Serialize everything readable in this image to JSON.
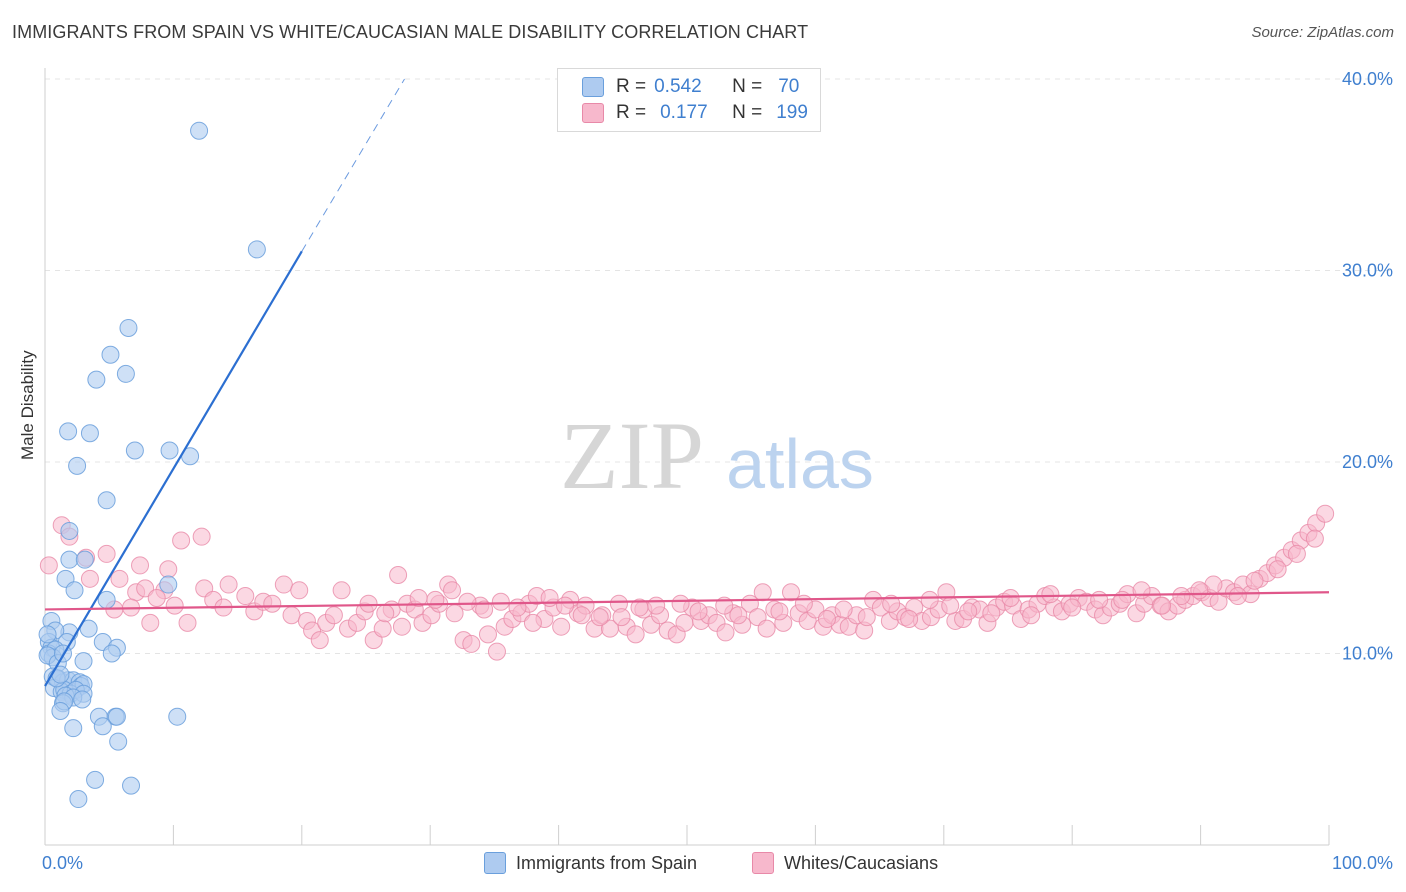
{
  "title": "IMMIGRANTS FROM SPAIN VS WHITE/CAUCASIAN MALE DISABILITY CORRELATION CHART",
  "source": "Source: ZipAtlas.com",
  "watermark": {
    "zip": "ZIP",
    "atlas": "atlas"
  },
  "legend": {
    "rows": [
      {
        "r_label": "R =",
        "r_value": "0.542",
        "n_label": "N =",
        "n_value": "70",
        "color": "#aecbf0"
      },
      {
        "r_label": "R =",
        "r_value": "0.177",
        "n_label": "N =",
        "n_value": "199",
        "color": "#f7b8cc"
      }
    ]
  },
  "bottom_legend": [
    {
      "label": "Immigrants from Spain",
      "color": "#aecbf0"
    },
    {
      "label": "Whites/Caucasians",
      "color": "#f7b8cc"
    }
  ],
  "chart_data": {
    "type": "scatter",
    "ylabel": "Male Disability",
    "xlim": [
      0,
      100
    ],
    "ylim": [
      0,
      42
    ],
    "x_tick_labels": [
      {
        "value": 0,
        "label": "0.0%"
      },
      {
        "value": 100,
        "label": "100.0%"
      }
    ],
    "y_tick_labels": [
      {
        "value": 10,
        "label": "10.0%"
      },
      {
        "value": 20,
        "label": "20.0%"
      },
      {
        "value": 30,
        "label": "30.0%"
      },
      {
        "value": 40,
        "label": "40.0%"
      }
    ],
    "series": [
      {
        "name": "Immigrants from Spain",
        "color": "#aecbf0",
        "stroke": "#6a9fdc",
        "trend": {
          "x0": 0,
          "y0": 8.3,
          "x1": 20,
          "y1": 31.0,
          "dash_to_x": 28,
          "dash_to_y": 40.0,
          "color": "#2c6fd1"
        },
        "points": [
          [
            12.0,
            37.3
          ],
          [
            16.5,
            31.1
          ],
          [
            6.5,
            27.0
          ],
          [
            5.1,
            25.6
          ],
          [
            4.0,
            24.3
          ],
          [
            6.3,
            24.6
          ],
          [
            1.8,
            21.6
          ],
          [
            3.5,
            21.5
          ],
          [
            7.0,
            20.6
          ],
          [
            9.7,
            20.6
          ],
          [
            11.3,
            20.3
          ],
          [
            2.5,
            19.8
          ],
          [
            4.8,
            18.0
          ],
          [
            1.9,
            16.4
          ],
          [
            1.9,
            14.9
          ],
          [
            3.1,
            14.9
          ],
          [
            1.6,
            13.9
          ],
          [
            9.6,
            13.6
          ],
          [
            2.3,
            13.3
          ],
          [
            4.8,
            12.8
          ],
          [
            0.5,
            11.7
          ],
          [
            1.9,
            11.1
          ],
          [
            3.4,
            11.3
          ],
          [
            0.8,
            11.2
          ],
          [
            1.7,
            10.6
          ],
          [
            4.5,
            10.6
          ],
          [
            0.3,
            10.6
          ],
          [
            0.5,
            10.3
          ],
          [
            0.3,
            10.0
          ],
          [
            5.6,
            10.3
          ],
          [
            0.8,
            10.2
          ],
          [
            0.6,
            9.8
          ],
          [
            0.2,
            9.9
          ],
          [
            1.0,
            9.5
          ],
          [
            3.0,
            9.6
          ],
          [
            5.2,
            10.0
          ],
          [
            0.6,
            8.8
          ],
          [
            1.0,
            8.7
          ],
          [
            1.4,
            8.5
          ],
          [
            1.8,
            8.6
          ],
          [
            2.2,
            8.6
          ],
          [
            2.7,
            8.5
          ],
          [
            2.8,
            8.3
          ],
          [
            3.0,
            8.4
          ],
          [
            0.7,
            8.2
          ],
          [
            1.3,
            8.0
          ],
          [
            1.5,
            8.1
          ],
          [
            2.0,
            7.9
          ],
          [
            2.4,
            8.1
          ],
          [
            3.0,
            7.9
          ],
          [
            0.9,
            8.7
          ],
          [
            1.2,
            8.9
          ],
          [
            1.6,
            7.8
          ],
          [
            2.2,
            7.7
          ],
          [
            2.9,
            7.6
          ],
          [
            1.4,
            7.4
          ],
          [
            1.5,
            7.5
          ],
          [
            1.2,
            7.0
          ],
          [
            4.2,
            6.7
          ],
          [
            5.5,
            6.7
          ],
          [
            5.6,
            6.7
          ],
          [
            10.3,
            6.7
          ],
          [
            2.2,
            6.1
          ],
          [
            4.5,
            6.2
          ],
          [
            5.7,
            5.4
          ],
          [
            3.9,
            3.4
          ],
          [
            6.7,
            3.1
          ],
          [
            2.6,
            2.4
          ],
          [
            0.2,
            11.0
          ],
          [
            1.4,
            10.0
          ]
        ]
      },
      {
        "name": "Whites/Caucasians",
        "color": "#f7b8cc",
        "stroke": "#e889a8",
        "trend": {
          "x0": 0,
          "y0": 12.3,
          "x1": 100,
          "y1": 13.2,
          "color": "#e0578a"
        },
        "points": [
          [
            1.3,
            16.7
          ],
          [
            1.9,
            16.1
          ],
          [
            3.2,
            15.0
          ],
          [
            4.8,
            15.2
          ],
          [
            0.3,
            14.6
          ],
          [
            7.4,
            14.6
          ],
          [
            12.2,
            16.1
          ],
          [
            10.6,
            15.9
          ],
          [
            3.5,
            13.9
          ],
          [
            5.8,
            13.9
          ],
          [
            7.1,
            13.2
          ],
          [
            7.8,
            13.4
          ],
          [
            9.3,
            13.3
          ],
          [
            8.7,
            12.9
          ],
          [
            10.1,
            12.5
          ],
          [
            9.6,
            14.4
          ],
          [
            6.7,
            12.4
          ],
          [
            5.4,
            12.3
          ],
          [
            8.2,
            11.6
          ],
          [
            11.1,
            11.6
          ],
          [
            12.4,
            13.4
          ],
          [
            13.1,
            12.8
          ],
          [
            13.9,
            12.4
          ],
          [
            14.3,
            13.6
          ],
          [
            15.6,
            13.0
          ],
          [
            16.3,
            12.2
          ],
          [
            17.0,
            12.7
          ],
          [
            17.7,
            12.6
          ],
          [
            18.6,
            13.6
          ],
          [
            19.2,
            12.0
          ],
          [
            19.8,
            13.3
          ],
          [
            20.4,
            11.7
          ],
          [
            20.8,
            11.2
          ],
          [
            21.4,
            10.7
          ],
          [
            21.9,
            11.6
          ],
          [
            22.5,
            12.0
          ],
          [
            23.1,
            13.3
          ],
          [
            23.6,
            11.3
          ],
          [
            24.3,
            11.6
          ],
          [
            24.9,
            12.2
          ],
          [
            25.6,
            10.7
          ],
          [
            26.3,
            11.3
          ],
          [
            27.0,
            12.3
          ],
          [
            27.5,
            14.1
          ],
          [
            28.2,
            12.6
          ],
          [
            28.8,
            12.3
          ],
          [
            29.4,
            11.6
          ],
          [
            30.1,
            12.0
          ],
          [
            30.7,
            12.6
          ],
          [
            31.4,
            13.6
          ],
          [
            31.9,
            12.1
          ],
          [
            32.6,
            10.7
          ],
          [
            33.2,
            10.5
          ],
          [
            33.9,
            12.5
          ],
          [
            34.5,
            11.0
          ],
          [
            35.2,
            10.1
          ],
          [
            35.8,
            11.4
          ],
          [
            36.4,
            11.8
          ],
          [
            37.1,
            12.1
          ],
          [
            37.7,
            12.6
          ],
          [
            38.3,
            13.0
          ],
          [
            38.9,
            11.8
          ],
          [
            39.6,
            12.4
          ],
          [
            40.2,
            11.4
          ],
          [
            40.9,
            12.8
          ],
          [
            41.5,
            12.1
          ],
          [
            42.1,
            12.5
          ],
          [
            42.8,
            11.3
          ],
          [
            43.4,
            12.0
          ],
          [
            44.0,
            11.3
          ],
          [
            44.7,
            12.6
          ],
          [
            45.3,
            11.4
          ],
          [
            46.0,
            11.0
          ],
          [
            46.6,
            12.3
          ],
          [
            47.2,
            11.5
          ],
          [
            47.9,
            12.0
          ],
          [
            48.5,
            11.2
          ],
          [
            49.2,
            11.0
          ],
          [
            49.8,
            11.6
          ],
          [
            50.4,
            12.4
          ],
          [
            51.1,
            11.7
          ],
          [
            51.7,
            12.0
          ],
          [
            52.3,
            11.6
          ],
          [
            53.0,
            11.1
          ],
          [
            53.6,
            12.1
          ],
          [
            54.3,
            11.5
          ],
          [
            54.9,
            12.6
          ],
          [
            55.5,
            11.9
          ],
          [
            56.2,
            11.3
          ],
          [
            56.8,
            12.3
          ],
          [
            57.5,
            11.6
          ],
          [
            58.1,
            13.2
          ],
          [
            58.7,
            12.1
          ],
          [
            59.4,
            11.7
          ],
          [
            60.0,
            12.3
          ],
          [
            60.6,
            11.4
          ],
          [
            61.3,
            12.0
          ],
          [
            61.9,
            11.5
          ],
          [
            62.6,
            11.4
          ],
          [
            63.2,
            12.0
          ],
          [
            63.8,
            11.2
          ],
          [
            64.5,
            12.8
          ],
          [
            65.1,
            12.4
          ],
          [
            65.8,
            11.7
          ],
          [
            66.4,
            12.2
          ],
          [
            67.0,
            11.9
          ],
          [
            67.7,
            12.4
          ],
          [
            68.3,
            11.7
          ],
          [
            69.0,
            11.9
          ],
          [
            69.6,
            12.3
          ],
          [
            70.2,
            13.2
          ],
          [
            70.9,
            11.7
          ],
          [
            71.5,
            11.8
          ],
          [
            72.2,
            12.4
          ],
          [
            72.8,
            12.3
          ],
          [
            73.4,
            11.6
          ],
          [
            74.1,
            12.4
          ],
          [
            74.7,
            12.7
          ],
          [
            75.4,
            12.5
          ],
          [
            76.0,
            11.8
          ],
          [
            76.6,
            12.3
          ],
          [
            77.3,
            12.6
          ],
          [
            77.9,
            13.0
          ],
          [
            78.6,
            12.4
          ],
          [
            79.2,
            12.2
          ],
          [
            79.8,
            12.6
          ],
          [
            80.5,
            12.9
          ],
          [
            81.1,
            12.7
          ],
          [
            81.8,
            12.3
          ],
          [
            82.4,
            12.0
          ],
          [
            83.0,
            12.4
          ],
          [
            83.7,
            12.6
          ],
          [
            84.3,
            13.1
          ],
          [
            85.0,
            12.1
          ],
          [
            85.6,
            12.6
          ],
          [
            86.2,
            13.0
          ],
          [
            86.9,
            12.5
          ],
          [
            87.5,
            12.2
          ],
          [
            88.2,
            12.5
          ],
          [
            88.8,
            12.8
          ],
          [
            89.4,
            13.0
          ],
          [
            90.1,
            13.2
          ],
          [
            90.7,
            12.9
          ],
          [
            91.4,
            12.7
          ],
          [
            92.0,
            13.4
          ],
          [
            92.6,
            13.2
          ],
          [
            93.3,
            13.6
          ],
          [
            93.9,
            13.1
          ],
          [
            94.6,
            13.9
          ],
          [
            95.2,
            14.2
          ],
          [
            95.8,
            14.6
          ],
          [
            96.5,
            15.0
          ],
          [
            97.1,
            15.4
          ],
          [
            97.8,
            15.9
          ],
          [
            98.4,
            16.3
          ],
          [
            99.0,
            16.8
          ],
          [
            99.7,
            17.3
          ],
          [
            98.9,
            16.0
          ],
          [
            97.5,
            15.2
          ],
          [
            96.0,
            14.4
          ],
          [
            94.2,
            13.8
          ],
          [
            92.9,
            13.0
          ],
          [
            91.0,
            13.6
          ],
          [
            89.9,
            13.3
          ],
          [
            88.5,
            13.0
          ],
          [
            87.0,
            12.5
          ],
          [
            85.4,
            13.3
          ],
          [
            83.9,
            12.8
          ],
          [
            82.1,
            12.8
          ],
          [
            80.0,
            12.4
          ],
          [
            78.3,
            13.1
          ],
          [
            76.8,
            12.0
          ],
          [
            75.2,
            12.9
          ],
          [
            73.7,
            12.1
          ],
          [
            71.9,
            12.2
          ],
          [
            70.5,
            12.5
          ],
          [
            68.9,
            12.8
          ],
          [
            67.3,
            11.8
          ],
          [
            65.9,
            12.6
          ],
          [
            64.0,
            11.9
          ],
          [
            62.2,
            12.3
          ],
          [
            60.9,
            11.8
          ],
          [
            59.1,
            12.6
          ],
          [
            57.2,
            12.2
          ],
          [
            55.9,
            13.2
          ],
          [
            54.0,
            12.0
          ],
          [
            52.9,
            12.5
          ],
          [
            50.9,
            12.2
          ],
          [
            49.5,
            12.6
          ],
          [
            47.6,
            12.5
          ],
          [
            46.3,
            12.4
          ],
          [
            44.9,
            11.9
          ],
          [
            43.2,
            11.9
          ],
          [
            41.8,
            12.0
          ],
          [
            40.5,
            12.5
          ],
          [
            39.3,
            12.9
          ],
          [
            38.0,
            11.6
          ],
          [
            36.8,
            12.4
          ],
          [
            35.5,
            12.7
          ],
          [
            34.2,
            12.3
          ],
          [
            32.9,
            12.7
          ],
          [
            31.7,
            13.3
          ],
          [
            30.4,
            12.8
          ],
          [
            29.1,
            12.9
          ],
          [
            27.8,
            11.4
          ],
          [
            26.5,
            12.1
          ],
          [
            25.2,
            12.6
          ]
        ]
      }
    ]
  }
}
